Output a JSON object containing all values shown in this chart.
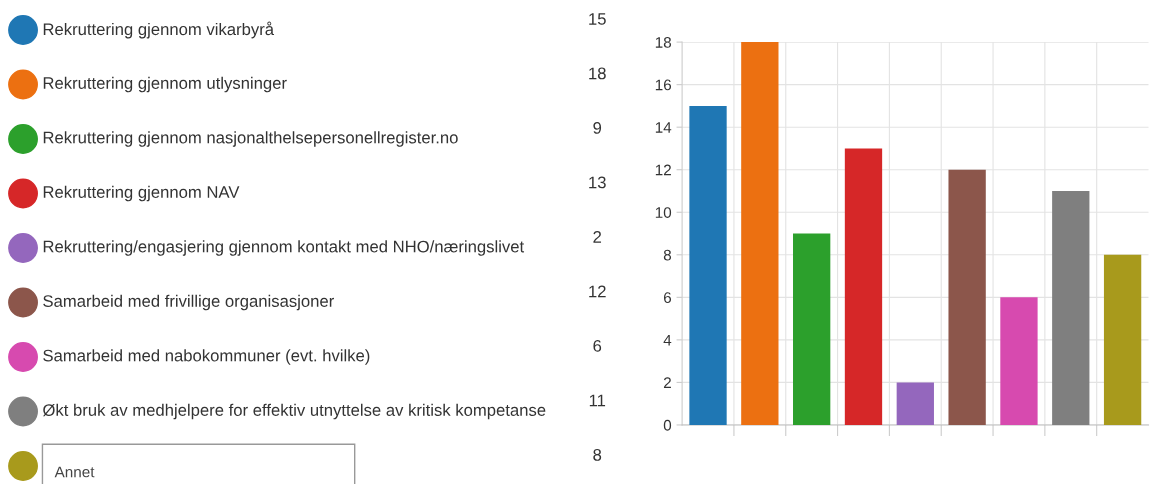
{
  "chart_data": [
    {
      "type": "other",
      "categories": [
        "Rekruttering gjennom vikarbyrå",
        "Rekruttering gjennom utlysninger",
        "Rekruttering gjennom nasjonalthelsepersonellregister.no",
        "Rekruttering gjennom NAV",
        "Rekruttering/engasjering gjennom kontakt med NHO/næringslivet",
        "Samarbeid med frivillige organisasjoner",
        "Samarbeid med nabokommuner (evt. hvilke)",
        "Økt bruk av medhjelpere for effektiv utnyttelse av kritisk kompetanse",
        "Annet"
      ],
      "values": [
        15,
        18,
        9,
        13,
        2,
        12,
        6,
        11,
        8
      ],
      "colors": [
        "#1f77b4",
        "#ec7011",
        "#2ca02c",
        "#d62728",
        "#9467bd",
        "#8c564b",
        "#d74aaf",
        "#7f7f7f",
        "#a89a1c"
      ],
      "data_labels": true
    },
    {
      "type": "bar",
      "categories": [
        null,
        null,
        null,
        null,
        null,
        null,
        null,
        null,
        null
      ],
      "values": [
        15,
        18,
        9,
        13,
        2,
        12,
        6,
        11,
        8
      ],
      "colors": [
        "#1f77b4",
        "#ec7011",
        "#2ca02c",
        "#d62728",
        "#9467bd",
        "#8c564b",
        "#d74aaf",
        "#7f7f7f",
        "#a89a1c"
      ],
      "ylim": [
        0,
        18
      ],
      "yticks": [
        0,
        2,
        4,
        6,
        8,
        10,
        12,
        14,
        16,
        18
      ],
      "grid": true,
      "tick_labels": "y"
    }
  ]
}
